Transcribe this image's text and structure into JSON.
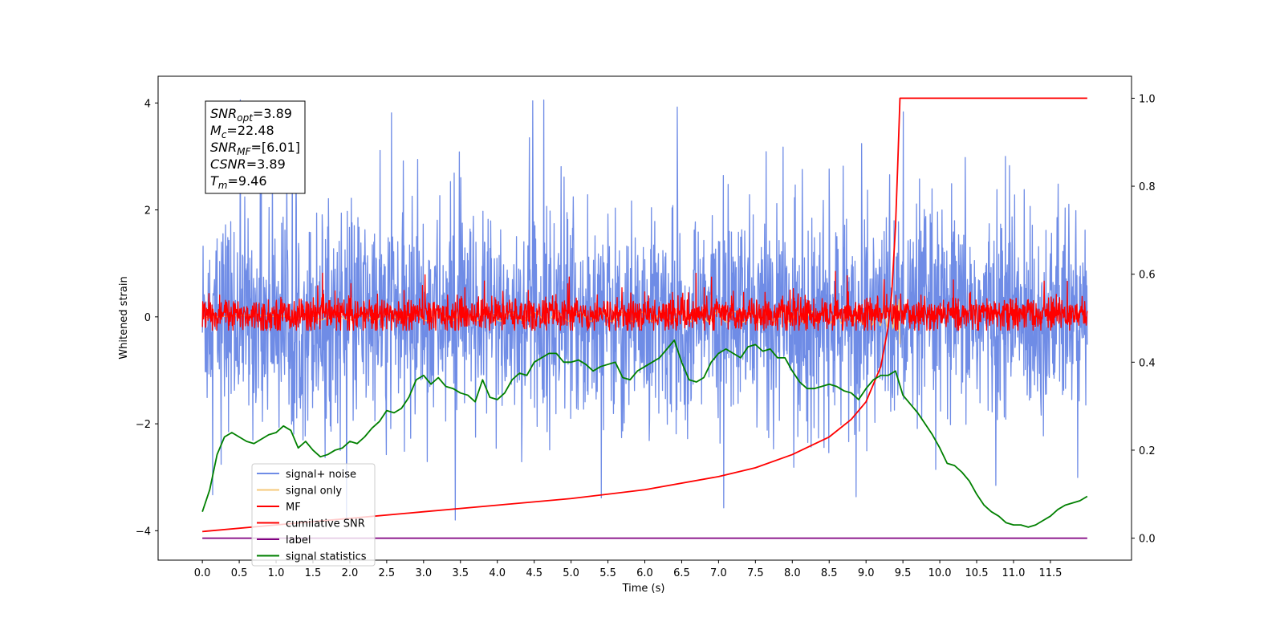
{
  "chart_data": {
    "type": "line",
    "title": "",
    "xlabel": "Time (s)",
    "ylabel": "Whitened strain",
    "xlim": [
      -0.6,
      12.6
    ],
    "ylim": [
      -4.55,
      4.5
    ],
    "y2lim": [
      -0.05,
      1.05
    ],
    "xticks": [
      0.0,
      0.5,
      1.0,
      1.5,
      2.0,
      2.5,
      3.0,
      3.5,
      4.0,
      4.5,
      5.0,
      5.5,
      6.0,
      6.5,
      7.0,
      7.5,
      8.0,
      8.5,
      9.0,
      9.5,
      10.0,
      10.5,
      11.0,
      11.5
    ],
    "xtick_labels": [
      "0.0",
      "0.5",
      "1.0",
      "1.5",
      "2.0",
      "2.5",
      "3.0",
      "3.5",
      "4.0",
      "4.5",
      "5.0",
      "5.5",
      "6.0",
      "6.5",
      "7.0",
      "7.5",
      "8.0",
      "8.5",
      "9.0",
      "9.5",
      "10.0",
      "10.5",
      "11.0",
      "11.5"
    ],
    "yticks": [
      4,
      2,
      0,
      -2,
      -4
    ],
    "ytick_labels": [
      "4",
      "2",
      "0",
      "−2",
      "−4"
    ],
    "y2ticks": [
      1.0,
      0.8,
      0.6,
      0.4,
      0.2,
      0.0
    ],
    "y2tick_labels": [
      "1.0",
      "0.8",
      "0.6",
      "0.4",
      "0.2",
      "0.0"
    ],
    "legend_position": "lower-left",
    "series": [
      {
        "name": "signal+ noise",
        "color": "#6f8ce6",
        "axis": "left",
        "kind": "noise",
        "x_range": [
          0.0,
          12.0
        ],
        "center": 0.0,
        "band_typical": 1.9,
        "peak_max": 4.1,
        "peak_min": -3.8
      },
      {
        "name": "signal only",
        "color": "#f6c87a",
        "axis": "left",
        "kind": "chirp",
        "x_range": [
          0.0,
          9.46
        ],
        "peak": 0.85,
        "peak_time": 9.46
      },
      {
        "name": "MF",
        "color": "#ff0000",
        "axis": "left",
        "kind": "noise",
        "x_range": [
          0.0,
          12.0
        ],
        "center": 0.05,
        "band_typical": 0.3,
        "peak_max": 0.95,
        "peak_min": -0.25
      },
      {
        "name": "cumilative SNR",
        "color": "#ff0000",
        "axis": "right",
        "kind": "curve",
        "x": [
          0.0,
          1.0,
          2.0,
          3.0,
          4.0,
          5.0,
          6.0,
          7.0,
          7.5,
          8.0,
          8.5,
          8.8,
          9.0,
          9.2,
          9.3,
          9.35,
          9.4,
          9.43,
          9.46,
          10.0,
          11.0,
          12.0
        ],
        "values": [
          0.015,
          0.03,
          0.045,
          0.06,
          0.075,
          0.09,
          0.11,
          0.14,
          0.16,
          0.19,
          0.23,
          0.27,
          0.31,
          0.39,
          0.48,
          0.56,
          0.71,
          0.85,
          1.0,
          1.0,
          1.0,
          1.0
        ]
      },
      {
        "name": "label",
        "color": "#800080",
        "axis": "right",
        "kind": "curve",
        "x": [
          0.0,
          12.0
        ],
        "values": [
          0.0,
          0.0
        ]
      },
      {
        "name": "signal statistics",
        "color": "#008000",
        "axis": "right",
        "kind": "curve",
        "x": [
          0.0,
          0.1,
          0.2,
          0.3,
          0.4,
          0.5,
          0.6,
          0.7,
          0.8,
          0.9,
          1.0,
          1.1,
          1.2,
          1.3,
          1.4,
          1.5,
          1.6,
          1.7,
          1.8,
          1.9,
          2.0,
          2.1,
          2.2,
          2.3,
          2.4,
          2.5,
          2.6,
          2.7,
          2.8,
          2.9,
          3.0,
          3.1,
          3.2,
          3.3,
          3.4,
          3.5,
          3.6,
          3.7,
          3.8,
          3.9,
          4.0,
          4.1,
          4.2,
          4.3,
          4.4,
          4.5,
          4.6,
          4.7,
          4.8,
          4.9,
          5.0,
          5.1,
          5.2,
          5.3,
          5.4,
          5.5,
          5.6,
          5.7,
          5.8,
          5.9,
          6.0,
          6.1,
          6.2,
          6.3,
          6.4,
          6.5,
          6.6,
          6.7,
          6.8,
          6.9,
          7.0,
          7.1,
          7.2,
          7.3,
          7.4,
          7.5,
          7.6,
          7.7,
          7.8,
          7.9,
          8.0,
          8.1,
          8.2,
          8.3,
          8.4,
          8.5,
          8.6,
          8.7,
          8.8,
          8.9,
          9.0,
          9.1,
          9.2,
          9.3,
          9.4,
          9.5,
          9.6,
          9.7,
          9.8,
          9.9,
          10.0,
          10.1,
          10.2,
          10.3,
          10.4,
          10.5,
          10.6,
          10.7,
          10.8,
          10.9,
          11.0,
          11.1,
          11.2,
          11.3,
          11.4,
          11.5,
          11.6,
          11.7,
          11.8,
          11.9,
          12.0
        ],
        "values": [
          0.06,
          0.11,
          0.19,
          0.23,
          0.24,
          0.23,
          0.22,
          0.215,
          0.225,
          0.235,
          0.24,
          0.255,
          0.245,
          0.205,
          0.22,
          0.2,
          0.185,
          0.19,
          0.2,
          0.205,
          0.22,
          0.215,
          0.23,
          0.25,
          0.265,
          0.29,
          0.285,
          0.295,
          0.32,
          0.36,
          0.37,
          0.35,
          0.365,
          0.345,
          0.34,
          0.33,
          0.325,
          0.31,
          0.36,
          0.32,
          0.315,
          0.33,
          0.36,
          0.375,
          0.37,
          0.4,
          0.41,
          0.42,
          0.42,
          0.4,
          0.4,
          0.405,
          0.395,
          0.38,
          0.39,
          0.395,
          0.4,
          0.365,
          0.36,
          0.38,
          0.39,
          0.4,
          0.41,
          0.43,
          0.45,
          0.4,
          0.36,
          0.355,
          0.365,
          0.4,
          0.42,
          0.43,
          0.42,
          0.41,
          0.435,
          0.44,
          0.425,
          0.43,
          0.41,
          0.41,
          0.38,
          0.355,
          0.34,
          0.34,
          0.345,
          0.35,
          0.345,
          0.335,
          0.33,
          0.315,
          0.34,
          0.36,
          0.37,
          0.37,
          0.38,
          0.325,
          0.305,
          0.285,
          0.26,
          0.235,
          0.205,
          0.17,
          0.165,
          0.15,
          0.13,
          0.1,
          0.075,
          0.06,
          0.05,
          0.035,
          0.03,
          0.03,
          0.025,
          0.03,
          0.04,
          0.05,
          0.065,
          0.075,
          0.08,
          0.085,
          0.095
        ]
      }
    ],
    "annotation_box": {
      "lines": [
        {
          "sym": "SNR",
          "sub": "opt",
          "value": "=3.89"
        },
        {
          "sym": "M",
          "sub": "c",
          "value": "=22.48"
        },
        {
          "sym": "SNR",
          "sub": "MF",
          "value": "=[6.01]"
        },
        {
          "sym": "CSNR",
          "sub": "",
          "value": "=3.89"
        },
        {
          "sym": "T",
          "sub": "m",
          "value": "=9.46"
        }
      ]
    }
  }
}
